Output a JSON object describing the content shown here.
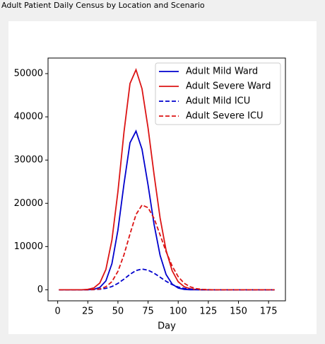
{
  "window_title": "Adult Patient Daily Census by Location and Scenario",
  "chart_data": {
    "type": "line",
    "xlabel": "Day",
    "x": [
      1,
      5,
      10,
      15,
      20,
      25,
      30,
      35,
      40,
      45,
      50,
      55,
      60,
      65,
      70,
      75,
      80,
      85,
      90,
      95,
      100,
      105,
      110,
      115,
      120,
      125,
      130,
      135,
      140,
      145,
      150,
      155,
      160,
      165,
      170,
      175,
      180
    ],
    "series": [
      {
        "name": "Adult Mild Ward",
        "color": "#0000cd",
        "linestyle": "solid",
        "values": [
          0,
          0,
          0,
          0,
          0,
          18,
          113,
          550,
          2070,
          6050,
          13800,
          24500,
          34000,
          36700,
          32500,
          24200,
          15100,
          7960,
          3520,
          1310,
          410,
          107,
          24,
          0,
          0,
          0,
          0,
          0,
          0,
          0,
          0,
          0,
          0,
          0,
          0,
          0,
          0
        ]
      },
      {
        "name": "Adult Severe Ward",
        "color": "#dc1414",
        "linestyle": "solid",
        "values": [
          0,
          0,
          0,
          0,
          0,
          96,
          428,
          1580,
          4720,
          11500,
          22700,
          36500,
          47700,
          50900,
          46500,
          37400,
          26600,
          16600,
          9100,
          4400,
          1870,
          700,
          230,
          66,
          17,
          0,
          0,
          0,
          0,
          0,
          0,
          0,
          0,
          0,
          0,
          0,
          0
        ]
      },
      {
        "name": "Adult Mild ICU",
        "color": "#0000cd",
        "linestyle": "dashed",
        "values": [
          0,
          0,
          0,
          0,
          0,
          12,
          42,
          128,
          336,
          755,
          1470,
          2470,
          3570,
          4460,
          4800,
          4540,
          3840,
          2910,
          1970,
          1200,
          650,
          316,
          137,
          53,
          19,
          6,
          0,
          0,
          0,
          0,
          0,
          0,
          0,
          0,
          0,
          0,
          0
        ]
      },
      {
        "name": "Adult Severe ICU",
        "color": "#dc1414",
        "linestyle": "dashed",
        "values": [
          0,
          0,
          0,
          0,
          0,
          13,
          57,
          219,
          700,
          1880,
          4260,
          8100,
          12900,
          17400,
          19600,
          19000,
          16500,
          12700,
          8830,
          5480,
          3040,
          1510,
          670,
          270,
          95,
          30,
          9,
          0,
          0,
          0,
          0,
          0,
          0,
          0,
          0,
          0,
          0
        ]
      }
    ],
    "xlim": [
      -8,
      189
    ],
    "xticks": [
      0,
      25,
      50,
      75,
      100,
      125,
      150,
      175
    ],
    "ylim": [
      -2550,
      53600
    ],
    "yticks": [
      0,
      10000,
      20000,
      30000,
      40000,
      50000
    ],
    "legend": "upper right"
  }
}
